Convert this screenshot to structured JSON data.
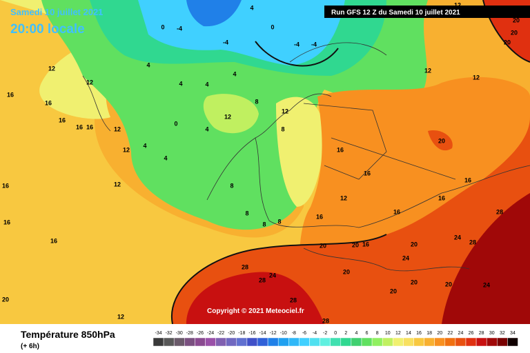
{
  "header": {
    "date": "Samedi 10 juillet 2021",
    "time": "20:00 locale",
    "run": "Run GFS 12 Z du Samedi 10 juillet 2021"
  },
  "copyright": "Copyright © 2021 Meteociel.fr",
  "legend": {
    "title": "Température 850hPa",
    "subtitle": "(+ 6h)",
    "values": [
      -34,
      -32,
      -30,
      -28,
      -26,
      -24,
      -22,
      -20,
      -18,
      -16,
      -14,
      -12,
      -10,
      -8,
      -6,
      -4,
      -2,
      0,
      2,
      4,
      6,
      8,
      10,
      12,
      14,
      16,
      18,
      20,
      22,
      24,
      26,
      28,
      30,
      32,
      34
    ],
    "colors": [
      "#3a3a3a",
      "#585858",
      "#6a5a6a",
      "#7a5080",
      "#8a4a90",
      "#9a50a8",
      "#8060b0",
      "#7068c0",
      "#6070d0",
      "#4050c8",
      "#3060d8",
      "#2080e8",
      "#20a0f0",
      "#30b8f8",
      "#40d0ff",
      "#50e0f0",
      "#60f0e0",
      "#40e0b0",
      "#30d890",
      "#40d070",
      "#60e060",
      "#90f060",
      "#c0f060",
      "#f0f070",
      "#f8e060",
      "#f8c840",
      "#f8b030",
      "#f89020",
      "#f07010",
      "#e85010",
      "#e03010",
      "#c81010",
      "#a00808",
      "#780000",
      "#100000"
    ]
  },
  "map_labels": [
    12,
    12,
    16,
    16,
    16,
    16,
    16,
    12,
    12,
    12,
    16,
    16,
    16,
    20,
    4,
    4,
    4,
    4,
    4,
    4,
    4,
    0,
    8,
    12,
    12,
    8,
    8,
    8,
    8,
    8,
    16,
    16,
    16,
    12,
    16,
    16,
    16,
    20,
    20,
    20,
    16,
    20,
    24,
    28,
    28,
    24,
    28,
    24,
    28,
    20,
    20,
    24,
    20,
    20,
    28,
    28,
    12,
    -4,
    -4,
    -4,
    -4,
    0,
    0,
    4,
    12,
    12,
    12,
    20,
    20,
    20
  ]
}
